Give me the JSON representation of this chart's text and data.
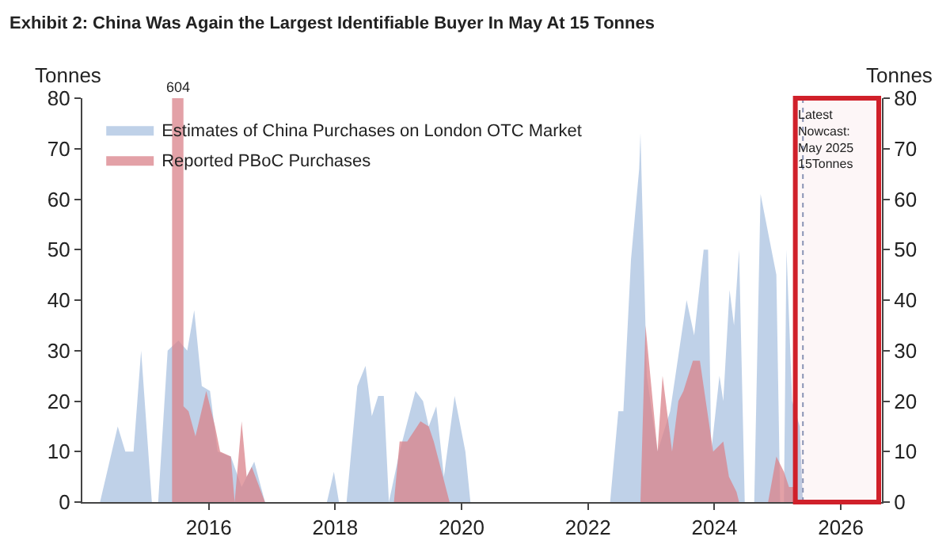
{
  "chart_data": {
    "type": "area",
    "title": "Exhibit 2: China Was Again the Largest Identifiable Buyer In May At 15 Tonnes",
    "ylabel": "Tonnes",
    "y2label": "Tonnes",
    "series": [
      {
        "name": "Estimates of China Purchases on London OTC Market",
        "color": "#a9c2e0",
        "x": [
          2014.28,
          2014.56,
          2014.68,
          2014.81,
          2014.93,
          2015.1,
          2015.2,
          2015.35,
          2015.52,
          2015.66,
          2015.77,
          2015.89,
          2016.02,
          2016.14,
          2016.35,
          2016.52,
          2016.72,
          2016.89,
          2017.87,
          2017.98,
          2018.06,
          2018.18,
          2018.35,
          2018.48,
          2018.58,
          2018.68,
          2018.77,
          2018.85,
          2019.02,
          2019.27,
          2019.39,
          2019.48,
          2019.6,
          2019.72,
          2019.89,
          2020.06,
          2020.14,
          2022.35,
          2022.48,
          2022.56,
          2022.68,
          2022.81,
          2022.83,
          2022.93,
          2023.1,
          2023.3,
          2023.56,
          2023.68,
          2023.83,
          2023.9,
          2023.95,
          2024.08,
          2024.14,
          2024.24,
          2024.31,
          2024.39,
          2024.48,
          2024.63,
          2024.73,
          2024.98,
          2025.04,
          2025.1,
          2025.14,
          2025.23,
          2025.35,
          2025.4
        ],
        "values": [
          0,
          15,
          10,
          10,
          30,
          0,
          0,
          30,
          32,
          30,
          38,
          23,
          22,
          10,
          9,
          3,
          8,
          0,
          0,
          6,
          0,
          0,
          23,
          27,
          17,
          21,
          21,
          0,
          10,
          22,
          20,
          15,
          19,
          5,
          21,
          10,
          0,
          0,
          18,
          18,
          48,
          66,
          73,
          25,
          10,
          18,
          40,
          33,
          50,
          50,
          10,
          25,
          20,
          42,
          35,
          50,
          0,
          0,
          61,
          45,
          0,
          0,
          50,
          20,
          15,
          0
        ]
      },
      {
        "name": "Reported PBoC Purchases",
        "color": "#d9828a",
        "x": [
          2015.42,
          2015.42,
          2015.6,
          2015.6,
          2015.68,
          2015.79,
          2015.96,
          2016.1,
          2016.18,
          2016.35,
          2016.41,
          2016.52,
          2016.6,
          2016.68,
          2016.89,
          2018.93,
          2019.02,
          2019.14,
          2019.35,
          2019.48,
          2019.56,
          2019.81,
          2022.83,
          2022.91,
          2023.1,
          2023.18,
          2023.33,
          2023.43,
          2023.51,
          2023.66,
          2023.77,
          2023.98,
          2024.14,
          2024.23,
          2024.35,
          2024.39,
          2024.85,
          2024.98,
          2025.1,
          2025.18,
          2025.26,
          2025.33
        ],
        "values": [
          0,
          80,
          80,
          19,
          18,
          13,
          22,
          15,
          10,
          9,
          0,
          16,
          5,
          7,
          0,
          0,
          12,
          12,
          16,
          15,
          12,
          0,
          0,
          35,
          10,
          25,
          10,
          20,
          22,
          28,
          28,
          10,
          12,
          5,
          2,
          0,
          0,
          9,
          6,
          3,
          3,
          0
        ]
      }
    ],
    "annotations": [
      {
        "text": "604",
        "x": 2015.51,
        "y": 80
      }
    ],
    "xlim": [
      2014.0,
      2026.65
    ],
    "xticks": [
      2016,
      2018,
      2020,
      2022,
      2024,
      2026
    ],
    "ylim": [
      0,
      80
    ],
    "yticks": [
      0,
      10,
      20,
      30,
      40,
      50,
      60,
      70,
      80
    ],
    "y2lim": [
      0,
      80
    ],
    "y2ticks": [
      0,
      10,
      20,
      30,
      40,
      50,
      60,
      70,
      80
    ],
    "ref_lines": [
      {
        "axis": "x",
        "value": 2025.4,
        "label": null,
        "color": "#8899bb",
        "line_style": "dotted"
      }
    ],
    "bands": [
      {
        "axis": "x",
        "from": 2025.28,
        "to": 2026.6,
        "label": "Latest\nNowcast:\nMay 2025\n15Tonnes",
        "color": "#d0202a"
      }
    ],
    "grid": false,
    "legend": "top left"
  }
}
